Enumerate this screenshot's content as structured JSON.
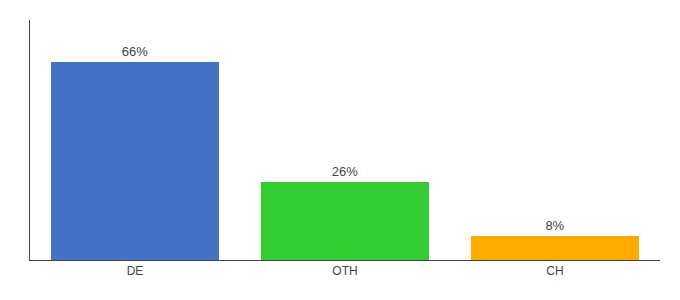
{
  "chart_data": {
    "type": "bar",
    "categories": [
      "DE",
      "OTH",
      "CH"
    ],
    "values": [
      66,
      26,
      8
    ],
    "value_labels": [
      "66%",
      "26%",
      "8%"
    ],
    "colors": [
      "#4472c4",
      "#33cc33",
      "#ffaa00"
    ],
    "ylim": [
      0,
      80
    ],
    "data_labels": true,
    "tick_labels": "x",
    "grid": false
  }
}
